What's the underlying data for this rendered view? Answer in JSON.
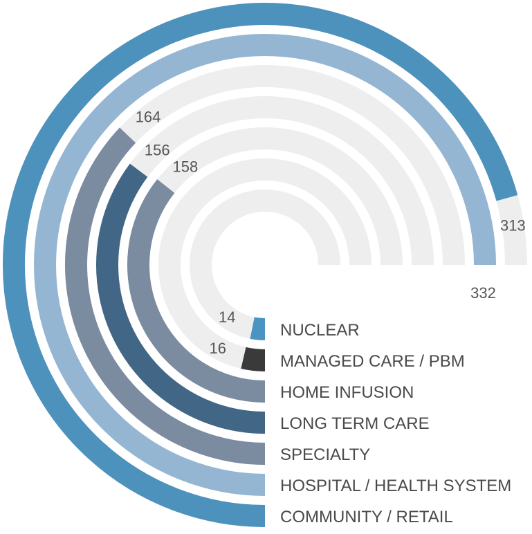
{
  "chart_data": {
    "type": "radial-bar",
    "title": "",
    "max": 332,
    "track_color": "#eeeeee",
    "series": [
      {
        "name": "NUCLEAR",
        "value": 14,
        "color": "#4b93c0"
      },
      {
        "name": "MANAGED CARE / PBM",
        "value": 16,
        "color": "#3a3a3a"
      },
      {
        "name": "HOME INFUSION",
        "value": 158,
        "color": "#7b8ba0"
      },
      {
        "name": "LONG TERM CARE",
        "value": 156,
        "color": "#426786"
      },
      {
        "name": "SPECIALTY",
        "value": 164,
        "color": "#7b8ba0"
      },
      {
        "name": "HOSPITAL / HEALTH SYSTEM",
        "value": 332,
        "color": "#95b6d3"
      },
      {
        "name": "COMMUNITY / RETAIL",
        "value": 313,
        "color": "#4d92bc"
      }
    ]
  }
}
